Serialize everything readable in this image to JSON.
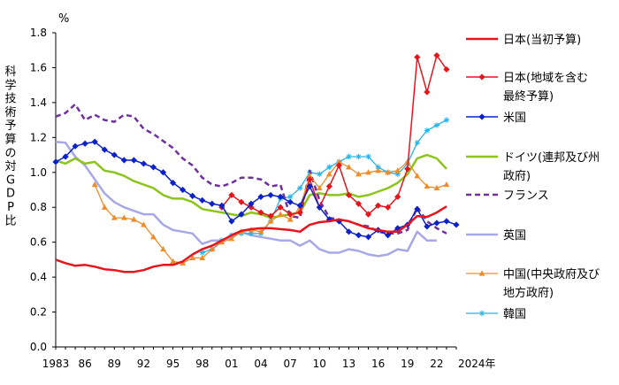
{
  "chart_data": {
    "type": "line",
    "title": "",
    "unit": "%",
    "ylabel": "科学技術予算の対GDP比",
    "xlabel_suffix": "2024年",
    "ylim": [
      0,
      1.8
    ],
    "yticks": [
      "0.0",
      "0.2",
      "0.4",
      "0.6",
      "0.8",
      "1.0",
      "1.2",
      "1.4",
      "1.6",
      "1.8"
    ],
    "xlim": [
      1983,
      2024
    ],
    "xticks": [
      {
        "year": 1983,
        "label": "1983"
      },
      {
        "year": 1986,
        "label": "86"
      },
      {
        "year": 1989,
        "label": "89"
      },
      {
        "year": 1992,
        "label": "92"
      },
      {
        "year": 1995,
        "label": "95"
      },
      {
        "year": 1998,
        "label": "98"
      },
      {
        "year": 2001,
        "label": "01"
      },
      {
        "year": 2004,
        "label": "04"
      },
      {
        "year": 2007,
        "label": "07"
      },
      {
        "year": 2010,
        "label": "10"
      },
      {
        "year": 2013,
        "label": "13"
      },
      {
        "year": 2016,
        "label": "16"
      },
      {
        "year": 2019,
        "label": "19"
      },
      {
        "year": 2022,
        "label": "22"
      }
    ],
    "legend_position": "right",
    "series": [
      {
        "name": "日本(当初予算)",
        "legend_lines": [
          "日本(当初予算)"
        ],
        "color": "#e8141c",
        "width": 2.5,
        "dash": "",
        "marker": "none",
        "x": [
          1983,
          1984,
          1985,
          1986,
          1987,
          1988,
          1989,
          1990,
          1991,
          1992,
          1993,
          1994,
          1995,
          1996,
          1997,
          1998,
          1999,
          2000,
          2001,
          2002,
          2003,
          2004,
          2005,
          2006,
          2007,
          2008,
          2009,
          2010,
          2011,
          2012,
          2013,
          2014,
          2015,
          2016,
          2017,
          2018,
          2019,
          2020,
          2021,
          2022,
          2023
        ],
        "values": [
          0.5,
          0.48,
          0.465,
          0.47,
          0.46,
          0.445,
          0.44,
          0.43,
          0.43,
          0.44,
          0.46,
          0.47,
          0.47,
          0.49,
          0.53,
          0.56,
          0.58,
          0.61,
          0.64,
          0.665,
          0.675,
          0.68,
          0.68,
          0.675,
          0.67,
          0.66,
          0.7,
          0.715,
          0.72,
          0.73,
          0.72,
          0.7,
          0.68,
          0.67,
          0.66,
          0.66,
          0.7,
          0.75,
          0.745,
          0.77,
          0.805
        ]
      },
      {
        "name": "日本(地域を含む最終予算)",
        "legend_lines": [
          "日本(地域を含む",
          "最終予算)"
        ],
        "color": "#e8141c",
        "width": 1.5,
        "dash": "",
        "marker": "diamond",
        "x": [
          2000,
          2001,
          2002,
          2003,
          2004,
          2005,
          2006,
          2007,
          2008,
          2009,
          2010,
          2011,
          2012,
          2013,
          2014,
          2015,
          2016,
          2017,
          2018,
          2019,
          2020,
          2021,
          2022,
          2023
        ],
        "values": [
          0.8,
          0.87,
          0.83,
          0.8,
          0.77,
          0.75,
          0.8,
          0.76,
          0.77,
          0.96,
          0.8,
          0.92,
          1.04,
          0.87,
          0.82,
          0.76,
          0.81,
          0.8,
          0.86,
          1.02,
          1.66,
          1.46,
          1.67,
          1.59
        ]
      },
      {
        "name": "米国",
        "legend_lines": [
          "米国"
        ],
        "color": "#0c22c8",
        "width": 1.5,
        "dash": "",
        "marker": "diamond",
        "x": [
          1983,
          1984,
          1985,
          1986,
          1987,
          1988,
          1989,
          1990,
          1991,
          1992,
          1993,
          1994,
          1995,
          1996,
          1997,
          1998,
          1999,
          2000,
          2001,
          2002,
          2003,
          2004,
          2005,
          2006,
          2007,
          2008,
          2009,
          2010,
          2011,
          2012,
          2013,
          2014,
          2015,
          2016,
          2017,
          2018,
          2019,
          2020,
          2021,
          2022,
          2023,
          2024
        ],
        "values": [
          1.06,
          1.09,
          1.15,
          1.165,
          1.175,
          1.13,
          1.1,
          1.07,
          1.07,
          1.05,
          1.03,
          1.0,
          0.94,
          0.9,
          0.865,
          0.84,
          0.82,
          0.81,
          0.72,
          0.76,
          0.82,
          0.86,
          0.87,
          0.86,
          0.83,
          0.81,
          0.92,
          0.8,
          0.73,
          0.72,
          0.66,
          0.64,
          0.63,
          0.67,
          0.64,
          0.68,
          0.7,
          0.79,
          0.69,
          0.71,
          0.72,
          0.7
        ]
      },
      {
        "name": "ドイツ(連邦及び州政府)",
        "legend_lines": [
          "ドイツ(連邦及び州",
          "政府)"
        ],
        "color": "#8cc41c",
        "width": 2.5,
        "dash": "",
        "marker": "none",
        "x": [
          1983,
          1984,
          1985,
          1986,
          1987,
          1988,
          1989,
          1990,
          1991,
          1992,
          1993,
          1994,
          1995,
          1996,
          1997,
          1998,
          1999,
          2000,
          2001,
          2002,
          2003,
          2004,
          2005,
          2006,
          2007,
          2008,
          2009,
          2010,
          2011,
          2012,
          2013,
          2014,
          2015,
          2016,
          2017,
          2018,
          2019,
          2020,
          2021,
          2022,
          2023
        ],
        "values": [
          1.07,
          1.05,
          1.08,
          1.05,
          1.06,
          1.01,
          1.0,
          0.98,
          0.95,
          0.93,
          0.91,
          0.87,
          0.85,
          0.85,
          0.83,
          0.79,
          0.78,
          0.77,
          0.76,
          0.75,
          0.77,
          0.76,
          0.74,
          0.75,
          0.76,
          0.77,
          0.87,
          0.88,
          0.87,
          0.87,
          0.88,
          0.86,
          0.87,
          0.89,
          0.91,
          0.94,
          0.99,
          1.08,
          1.1,
          1.08,
          1.02
        ]
      },
      {
        "name": "フランス",
        "legend_lines": [
          "フランス"
        ],
        "color": "#7030a0",
        "width": 2.5,
        "dash": "6,4",
        "marker": "none",
        "x": [
          1983,
          1984,
          1985,
          1986,
          1987,
          1988,
          1989,
          1990,
          1991,
          1992,
          1993,
          1994,
          1995,
          1996,
          1997,
          1998,
          1999,
          2000,
          2001,
          2002,
          2003,
          2004,
          2005,
          2006,
          2007,
          2008,
          2009,
          2010,
          2011,
          2012,
          2013,
          2014,
          2015,
          2016,
          2017,
          2018,
          2019,
          2020,
          2021,
          2022,
          2023
        ],
        "values": [
          1.32,
          1.34,
          1.39,
          1.3,
          1.33,
          1.3,
          1.29,
          1.33,
          1.32,
          1.25,
          1.22,
          1.18,
          1.14,
          1.08,
          1.04,
          0.97,
          0.93,
          0.92,
          0.94,
          0.97,
          0.97,
          0.96,
          0.92,
          0.93,
          0.75,
          0.74,
          1.01,
          0.84,
          0.74,
          0.73,
          0.72,
          0.7,
          0.69,
          0.66,
          0.65,
          0.65,
          0.67,
          0.8,
          0.72,
          0.68,
          0.65
        ]
      },
      {
        "name": "英国",
        "legend_lines": [
          "英国"
        ],
        "color": "#a8a8e8",
        "width": 2.5,
        "dash": "",
        "marker": "none",
        "x": [
          1983,
          1984,
          1985,
          1986,
          1987,
          1988,
          1989,
          1990,
          1991,
          1992,
          1993,
          1994,
          1995,
          1996,
          1997,
          1998,
          1999,
          2000,
          2001,
          2002,
          2003,
          2004,
          2005,
          2006,
          2007,
          2008,
          2009,
          2010,
          2011,
          2012,
          2013,
          2014,
          2015,
          2016,
          2017,
          2018,
          2019,
          2020,
          2021,
          2022
        ],
        "values": [
          1.175,
          1.17,
          1.09,
          1.04,
          0.96,
          0.88,
          0.83,
          0.8,
          0.78,
          0.76,
          0.76,
          0.7,
          0.67,
          0.66,
          0.65,
          0.59,
          0.61,
          0.61,
          0.63,
          0.66,
          0.64,
          0.63,
          0.62,
          0.61,
          0.61,
          0.58,
          0.61,
          0.56,
          0.54,
          0.54,
          0.56,
          0.55,
          0.53,
          0.52,
          0.53,
          0.56,
          0.55,
          0.66,
          0.61,
          0.61
        ]
      },
      {
        "name": "中国(中央政府及び地方政府)",
        "legend_lines": [
          "中国(中央政府及び",
          "地方政府)"
        ],
        "color": "#f08c28",
        "width": 1.3,
        "dash": "",
        "marker": "triangle",
        "x": [
          1987,
          1988,
          1989,
          1990,
          1991,
          1992,
          1993,
          1994,
          1995,
          1996,
          1997,
          1998,
          1999,
          2000,
          2001,
          2002,
          2003,
          2004,
          2005,
          2006,
          2007,
          2008,
          2009,
          2010,
          2011,
          2012,
          2013,
          2014,
          2015,
          2016,
          2017,
          2018,
          2019,
          2020,
          2021,
          2022,
          2023
        ],
        "values": [
          0.93,
          0.8,
          0.74,
          0.74,
          0.73,
          0.7,
          0.63,
          0.56,
          0.49,
          0.48,
          0.51,
          0.51,
          0.56,
          0.6,
          0.62,
          0.66,
          0.67,
          0.66,
          0.72,
          0.76,
          0.73,
          0.8,
          0.98,
          0.91,
          0.99,
          1.06,
          1.03,
          0.99,
          1.0,
          1.01,
          1.0,
          1.01,
          1.06,
          0.98,
          0.92,
          0.91,
          0.93
        ]
      },
      {
        "name": "韓国",
        "legend_lines": [
          "韓国"
        ],
        "color": "#28b4e8",
        "width": 1.3,
        "dash": "",
        "marker": "star",
        "x": [
          1998,
          1999,
          2000,
          2001,
          2002,
          2003,
          2004,
          2005,
          2006,
          2007,
          2008,
          2009,
          2010,
          2011,
          2012,
          2013,
          2014,
          2015,
          2016,
          2017,
          2018,
          2019,
          2020,
          2021,
          2022,
          2023
        ],
        "values": [
          0.54,
          0.56,
          0.61,
          0.64,
          0.65,
          0.65,
          0.65,
          0.72,
          0.85,
          0.86,
          0.91,
          1.0,
          0.99,
          1.03,
          1.06,
          1.09,
          1.09,
          1.09,
          1.03,
          1.0,
          0.99,
          1.05,
          1.17,
          1.24,
          1.27,
          1.3
        ]
      }
    ]
  }
}
